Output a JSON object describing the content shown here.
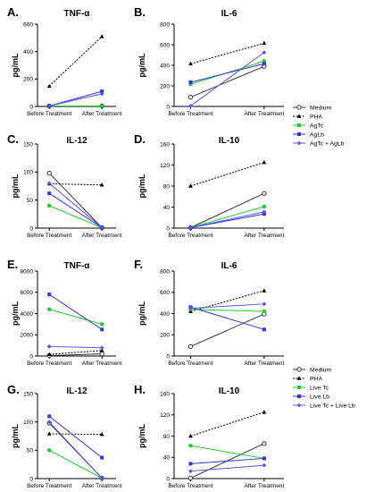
{
  "colors": {
    "medium": "#333333",
    "pha": "#000000",
    "green": "#22cc33",
    "blue": "#3333dd",
    "bluelight": "#5555ee"
  },
  "legend_top": [
    "Medium",
    "PHA",
    "AgTc",
    "AgLb",
    "AgTc + AgLb"
  ],
  "legend_bottom": [
    "Medium",
    "PHA",
    "Live Tc",
    "Live Lb",
    "Live Tc + Live Lb"
  ],
  "chart_data": [
    {
      "panel": "A.",
      "title": "TNF-α",
      "type": "line",
      "ylabel": "pg/mL",
      "categories": [
        "Before Treatment",
        "After Treatment"
      ],
      "ylim": [
        0,
        600
      ],
      "yticks": [
        "0",
        "200",
        "400",
        "600"
      ],
      "series": [
        {
          "name": "Medium",
          "values": [
            0,
            0
          ]
        },
        {
          "name": "PHA",
          "values": [
            148,
            510
          ]
        },
        {
          "name": "AgTc",
          "values": [
            0,
            0
          ]
        },
        {
          "name": "AgLb",
          "values": [
            0,
            110
          ]
        },
        {
          "name": "AgTc + AgLb",
          "values": [
            0,
            92
          ]
        }
      ]
    },
    {
      "panel": "B.",
      "title": "IL-6",
      "type": "line",
      "ylabel": "pg/mL",
      "categories": [
        "Before Treatment",
        "After Treatment"
      ],
      "ylim": [
        0,
        800
      ],
      "yticks": [
        "0",
        "200",
        "400",
        "600",
        "800"
      ],
      "series": [
        {
          "name": "Medium",
          "values": [
            90,
            390
          ]
        },
        {
          "name": "PHA",
          "values": [
            415,
            615
          ]
        },
        {
          "name": "AgTc",
          "values": [
            215,
            440
          ]
        },
        {
          "name": "AgLb",
          "values": [
            235,
            415
          ]
        },
        {
          "name": "AgTc + AgLb",
          "values": [
            5,
            525
          ]
        }
      ]
    },
    {
      "panel": "C.",
      "title": "IL-12",
      "type": "line",
      "ylabel": "pg/mL",
      "categories": [
        "Before Treatment",
        "After Treatment"
      ],
      "ylim": [
        0,
        150
      ],
      "yticks": [
        "0",
        "50",
        "100",
        "150"
      ],
      "series": [
        {
          "name": "Medium",
          "values": [
            98,
            0
          ]
        },
        {
          "name": "PHA",
          "values": [
            79,
            77
          ]
        },
        {
          "name": "AgTc",
          "values": [
            40,
            0
          ]
        },
        {
          "name": "AgLb",
          "values": [
            62,
            0
          ]
        },
        {
          "name": "AgTc + AgLb",
          "values": [
            80,
            0
          ]
        }
      ]
    },
    {
      "panel": "D.",
      "title": "IL-10",
      "type": "line",
      "ylabel": "pg/mL",
      "categories": [
        "Before Treatment",
        "After Treatment"
      ],
      "ylim": [
        0,
        160
      ],
      "yticks": [
        "0",
        "40",
        "80",
        "120",
        "160"
      ],
      "series": [
        {
          "name": "Medium",
          "values": [
            0,
            66
          ]
        },
        {
          "name": "PHA",
          "values": [
            80,
            125
          ]
        },
        {
          "name": "AgTc",
          "values": [
            0,
            41
          ]
        },
        {
          "name": "AgLb",
          "values": [
            0,
            27
          ]
        },
        {
          "name": "AgTc + AgLb",
          "values": [
            0,
            31
          ]
        }
      ]
    },
    {
      "panel": "E.",
      "title": "TNF-α",
      "type": "line",
      "ylabel": "pg/mL",
      "categories": [
        "Before Treatment",
        "After Treatment"
      ],
      "ylim": [
        0,
        8000
      ],
      "yticks": [
        "0",
        "2000",
        "4000",
        "6000",
        "8000"
      ],
      "series": [
        {
          "name": "Medium",
          "values": [
            0,
            200
          ]
        },
        {
          "name": "PHA",
          "values": [
            150,
            520
          ]
        },
        {
          "name": "Live Tc",
          "values": [
            4400,
            3000
          ]
        },
        {
          "name": "Live Lb",
          "values": [
            5800,
            2500
          ]
        },
        {
          "name": "Live Tc + Live Lb",
          "values": [
            900,
            780
          ]
        }
      ]
    },
    {
      "panel": "F.",
      "title": "IL-6",
      "type": "line",
      "ylabel": "pg/mL",
      "categories": [
        "Before Treatment",
        "After Treatment"
      ],
      "ylim": [
        0,
        800
      ],
      "yticks": [
        "0",
        "200",
        "400",
        "600",
        "800"
      ],
      "series": [
        {
          "name": "Medium",
          "values": [
            90,
            395
          ]
        },
        {
          "name": "PHA",
          "values": [
            420,
            615
          ]
        },
        {
          "name": "Live Tc",
          "values": [
            440,
            420
          ]
        },
        {
          "name": "Live Lb",
          "values": [
            460,
            250
          ]
        },
        {
          "name": "Live Tc + Live Lb",
          "values": [
            450,
            490
          ]
        }
      ]
    },
    {
      "panel": "G.",
      "title": "IL-12",
      "type": "line",
      "ylabel": "pg/mL",
      "categories": [
        "Before Treatment",
        "After Treatment"
      ],
      "ylim": [
        0,
        150
      ],
      "yticks": [
        "0",
        "50",
        "100",
        "150"
      ],
      "series": [
        {
          "name": "Medium",
          "values": [
            98,
            0
          ]
        },
        {
          "name": "PHA",
          "values": [
            79,
            78
          ]
        },
        {
          "name": "Live Tc",
          "values": [
            50,
            0
          ]
        },
        {
          "name": "Live Lb",
          "values": [
            110,
            37
          ]
        },
        {
          "name": "Live Tc + Live Lb",
          "values": [
            100,
            0
          ]
        }
      ]
    },
    {
      "panel": "H.",
      "title": "IL-10",
      "type": "line",
      "ylabel": "pg/mL",
      "categories": [
        "Before Treatment",
        "After Treatment"
      ],
      "ylim": [
        0,
        160
      ],
      "yticks": [
        "0",
        "40",
        "80",
        "120",
        "160"
      ],
      "series": [
        {
          "name": "Medium",
          "values": [
            0,
            66
          ]
        },
        {
          "name": "PHA",
          "values": [
            80,
            125
          ]
        },
        {
          "name": "Live Tc",
          "values": [
            62,
            38
          ]
        },
        {
          "name": "Live Lb",
          "values": [
            28,
            38
          ]
        },
        {
          "name": "Live Tc + Live Lb",
          "values": [
            14,
            25
          ]
        }
      ]
    }
  ]
}
